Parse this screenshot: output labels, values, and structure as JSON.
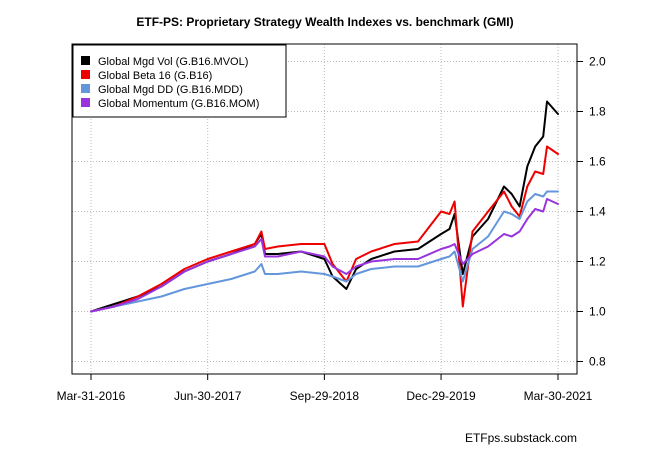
{
  "chart_data": {
    "type": "line",
    "title": "ETF-PS: Proprietary Strategy Wealth Indexes vs. benchmark (GMI)",
    "xlabel": "",
    "ylabel": "",
    "x_ticks": [
      "Mar-31-2016",
      "Jun-30-2017",
      "Sep-29-2018",
      "Dec-29-2019",
      "Mar-30-2021"
    ],
    "y_ticks": [
      "0.8",
      "1.0",
      "1.2",
      "1.4",
      "1.6",
      "1.8",
      "2.0"
    ],
    "ylim": [
      0.75,
      2.07
    ],
    "y_axis_side": "right",
    "grid": true,
    "legend_position": "top-left",
    "source": "ETFps.substack.com",
    "x": [
      "2016-03-31",
      "2016-06-30",
      "2016-09-30",
      "2016-12-31",
      "2017-03-31",
      "2017-06-30",
      "2017-09-30",
      "2017-12-31",
      "2018-01-26",
      "2018-02-09",
      "2018-03-31",
      "2018-06-30",
      "2018-09-29",
      "2018-10-31",
      "2018-12-24",
      "2019-01-31",
      "2019-03-31",
      "2019-06-30",
      "2019-09-30",
      "2019-12-29",
      "2020-01-31",
      "2020-02-20",
      "2020-03-23",
      "2020-04-30",
      "2020-06-30",
      "2020-08-31",
      "2020-09-30",
      "2020-10-31",
      "2020-11-30",
      "2020-12-31",
      "2021-01-31",
      "2021-02-15",
      "2021-03-30"
    ],
    "series": [
      {
        "name": "Global Mgd Vol (G.B16.MVOL)",
        "color": "#000000",
        "values": [
          1.0,
          1.03,
          1.06,
          1.1,
          1.16,
          1.2,
          1.23,
          1.27,
          1.31,
          1.23,
          1.23,
          1.24,
          1.21,
          1.14,
          1.09,
          1.17,
          1.21,
          1.24,
          1.25,
          1.31,
          1.33,
          1.39,
          1.15,
          1.3,
          1.37,
          1.5,
          1.47,
          1.42,
          1.58,
          1.66,
          1.7,
          1.84,
          1.79
        ]
      },
      {
        "name": "Global Beta 16 (G.B16)",
        "color": "#ee0000",
        "values": [
          1.0,
          1.02,
          1.06,
          1.11,
          1.17,
          1.21,
          1.24,
          1.27,
          1.32,
          1.25,
          1.26,
          1.27,
          1.27,
          1.19,
          1.12,
          1.21,
          1.24,
          1.27,
          1.28,
          1.4,
          1.39,
          1.44,
          1.02,
          1.32,
          1.4,
          1.48,
          1.42,
          1.38,
          1.5,
          1.56,
          1.55,
          1.66,
          1.63
        ]
      },
      {
        "name": "Global Mgd DD (G.B16.MDD)",
        "color": "#6496dc",
        "values": [
          1.0,
          1.02,
          1.04,
          1.06,
          1.09,
          1.11,
          1.13,
          1.16,
          1.19,
          1.15,
          1.15,
          1.16,
          1.15,
          1.14,
          1.12,
          1.15,
          1.17,
          1.18,
          1.18,
          1.21,
          1.22,
          1.24,
          1.12,
          1.25,
          1.3,
          1.4,
          1.39,
          1.37,
          1.44,
          1.47,
          1.46,
          1.48,
          1.48
        ]
      },
      {
        "name": "Global Momentum (G.B16.MOM)",
        "color": "#9933dd",
        "values": [
          1.0,
          1.02,
          1.05,
          1.1,
          1.16,
          1.2,
          1.23,
          1.26,
          1.29,
          1.22,
          1.22,
          1.24,
          1.22,
          1.18,
          1.15,
          1.18,
          1.2,
          1.21,
          1.21,
          1.25,
          1.26,
          1.27,
          1.19,
          1.23,
          1.26,
          1.31,
          1.3,
          1.32,
          1.37,
          1.41,
          1.4,
          1.45,
          1.43
        ]
      }
    ]
  }
}
